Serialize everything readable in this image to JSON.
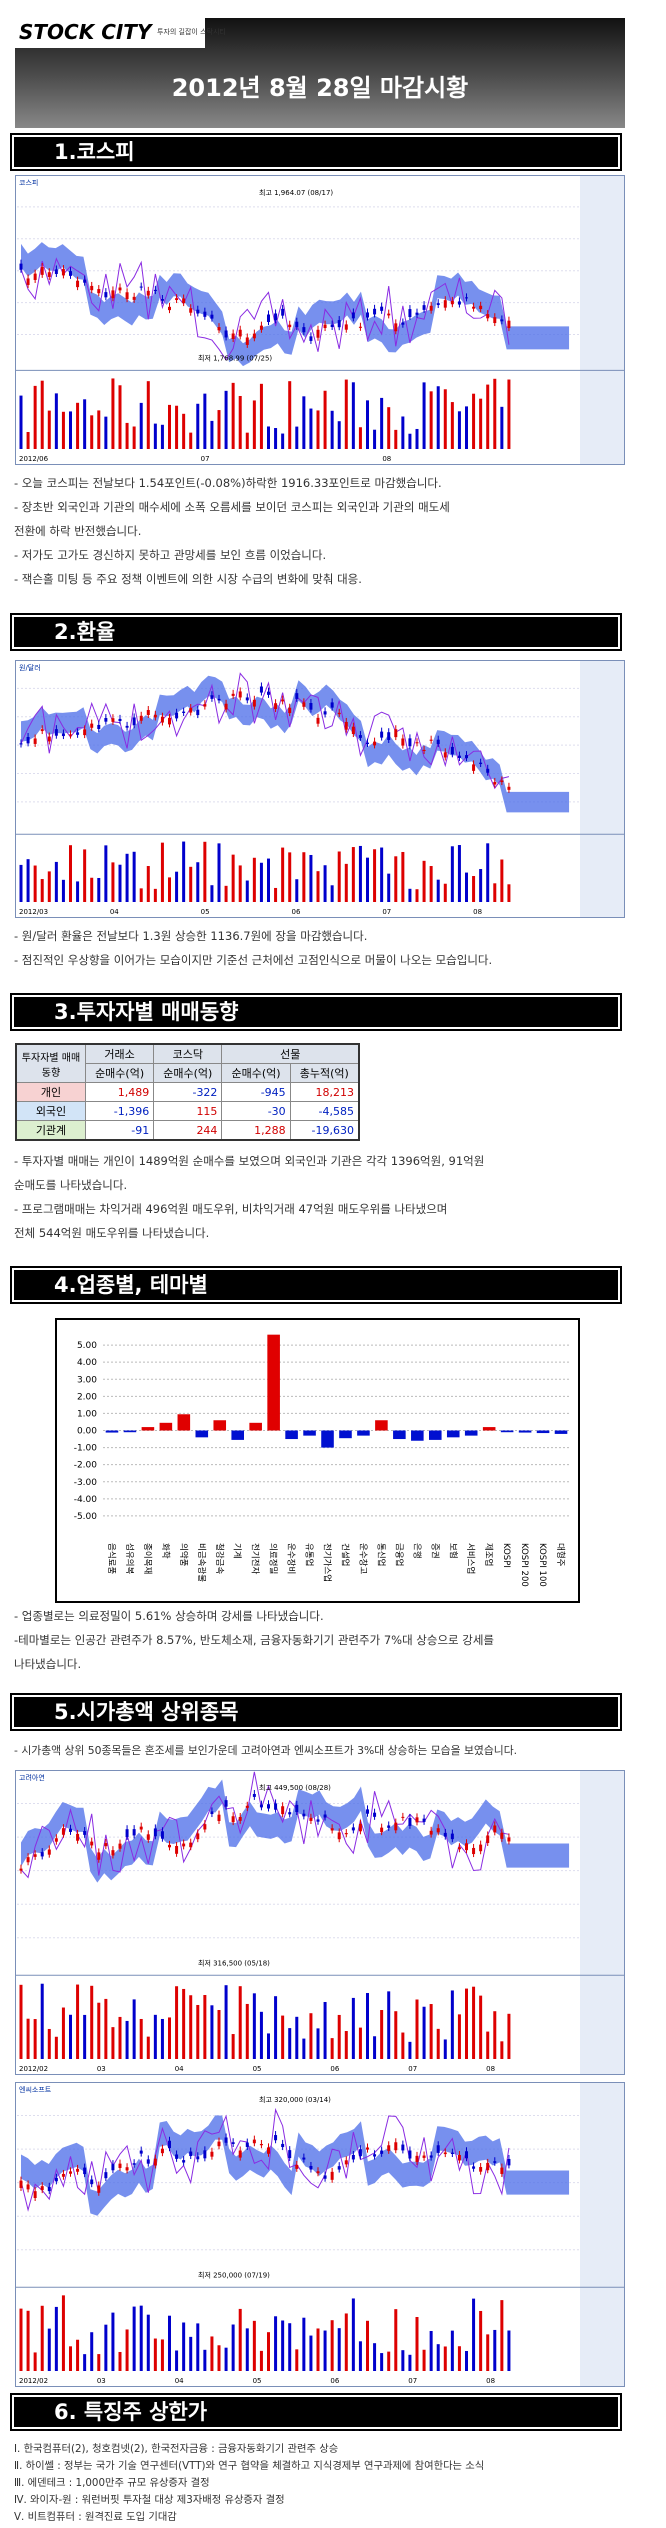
{
  "header": {
    "logo": "STOCK CITY",
    "tagline": "투자의 길잡이 스탁시티",
    "title": "2012년 8월 28일 마감시황"
  },
  "sections": [
    {
      "title": "1.코스피",
      "chart": {
        "name": "코스피",
        "high": "최고 1,964.07 (08/17)",
        "low": "최저 1,768.99 (07/25)",
        "x_labels": [
          "2012/06",
          "07",
          "08"
        ]
      },
      "bullets": [
        "- 오늘 코스피는 전날보다 1.54포인트(-0.08%)하락한 1916.33포인트로 마감했습니다.",
        "- 장초반 외국인과 기관의 매수세에 소폭 오름세를 보이던 코스피는 외국인과 기관의 매도세",
        "전환에 하락 반전했습니다.",
        "- 저가도 고가도 경신하지 못하고 관망세를 보인 흐름 이었습니다.",
        "- 잭슨홀 미팅 등 주요 정책 이벤트에 의한 시장 수급의 변화에 맞춰 대응."
      ]
    },
    {
      "title": "2.환율",
      "chart": {
        "name": "원/달러",
        "x_labels": [
          "2012/03",
          "04",
          "05",
          "06",
          "07",
          "08"
        ]
      },
      "bullets": [
        "- 원/달러 환율은 전날보다 1.3원 상승한 1136.7원에 장을 마감했습니다.",
        "- 점진적인 우상향을 이어가는 모습이지만 기준선 근처에선 고점인식으로 머물이 나오는 모습입니다."
      ]
    },
    {
      "title": "3.투자자별 매매동향",
      "table": {
        "corner": "투자자별 매매동향",
        "groups": [
          "거래소",
          "코스닥",
          "선물"
        ],
        "subheaders": [
          "순매수(억)",
          "순매수(억)",
          "순매수(억)",
          "총누적(억)"
        ],
        "rows": [
          [
            "개인",
            "1,489",
            "-322",
            "-945",
            "18,213"
          ],
          [
            "외국인",
            "-1,396",
            "115",
            "-30",
            "-4,585"
          ],
          [
            "기관계",
            "-91",
            "244",
            "1,288",
            "-19,630"
          ]
        ]
      },
      "bullets": [
        "- 투자자별 매매는 개인이 1489억원 순매수를 보였으며 외국인과 기관은 각각 1396억원, 91억원",
        "순매도를 나타냈습니다.",
        "- 프로그램매매는 차익거래 496억원 매도우위, 비차익거래 47억원 매도우위를 나타냈으며",
        "전체 544억원 매도우위를 나타냈습니다."
      ]
    },
    {
      "title": "4.업종별, 테마별",
      "chart_data": {
        "type": "bar",
        "categories": [
          "음식료품",
          "섬유의복",
          "종이목재",
          "화학",
          "의약품",
          "비금속광물",
          "철강금속",
          "기계",
          "전기전자",
          "의료정밀",
          "운수장비",
          "유통업",
          "전기가스업",
          "건설업",
          "운수창고",
          "통신업",
          "금융업",
          "은행",
          "증권",
          "보험",
          "서비스업",
          "제조업",
          "KOSPI",
          "KOSPI 200",
          "KOSPI 100",
          "대형주"
        ],
        "values": [
          -0.12,
          -0.1,
          0.2,
          0.45,
          0.95,
          -0.4,
          0.6,
          -0.55,
          0.45,
          5.61,
          -0.5,
          -0.3,
          -1.0,
          -0.45,
          -0.3,
          0.6,
          -0.5,
          -0.6,
          -0.55,
          -0.4,
          -0.3,
          0.2,
          -0.1,
          -0.12,
          -0.15,
          -0.2
        ],
        "positive_color": "#e00000",
        "negative_color": "#0010d0",
        "ylim": [
          -6,
          6
        ],
        "yticks": [
          {
            "value": 5,
            "label": "5.00"
          },
          {
            "value": 4,
            "label": "4.00"
          },
          {
            "value": 3,
            "label": "3.00"
          },
          {
            "value": 2,
            "label": "2.00"
          },
          {
            "value": 1,
            "label": "1.00"
          },
          {
            "value": 0,
            "label": "0.00"
          },
          {
            "value": -1,
            "label": "-1.00"
          },
          {
            "value": -2,
            "label": "-2.00"
          },
          {
            "value": -3,
            "label": "-3.00"
          },
          {
            "value": -4,
            "label": "-4.00"
          },
          {
            "value": -5,
            "label": "-5.00"
          }
        ]
      },
      "bullets": [
        "- 업종별로는 의료정밀이 5.61% 상승하며 강세를 나타냈습니다.",
        "-테마별로는 인공간 관련주가 8.57%, 반도체소재, 금융자동화기기 관련주가 7%대 상승으로 강세를",
        "나타냈습니다."
      ]
    },
    {
      "title": "5.시가총액 상위종목",
      "bullets": [
        "- 시가총액 상위 50종목들은 혼조세를 보인가운데 고려아연과 엔씨소프트가 3%대 상승하는 모습을 보였습니다."
      ],
      "charts": [
        {
          "name": "고려아연",
          "high": "최고 449,500 (08/28)",
          "low": "최저 316,500 (05/18)",
          "x_labels": [
            "2012/02",
            "03",
            "04",
            "05",
            "06",
            "07",
            "08"
          ]
        },
        {
          "name": "엔씨소프트",
          "high": "최고 320,000 (03/14)",
          "low": "최저 250,000 (07/19)",
          "x_labels": [
            "2012/02",
            "03",
            "04",
            "05",
            "06",
            "07",
            "08"
          ]
        }
      ]
    },
    {
      "title": "6. 특징주 상한가",
      "bullets": [
        "Ⅰ. 한국컴퓨터(2), 청호컴넷(2), 한국전자금융 : 금융자동화기기 관련주 상승",
        "Ⅱ. 하이쎌 : 정부는 국가 기술 연구센터(VTT)와 연구 협약을 체결하고 지식경제부 연구과제에 참여한다는 소식",
        "Ⅲ. 에덴테크 : 1,000만주 규모 유상증자 결정",
        "Ⅳ. 와이자-원 : 워런버핏 투자철 대상 제3자배정 유상증자 결정",
        "Ⅴ. 비트컴퓨터 : 원격진료 도입 기대감"
      ]
    }
  ]
}
